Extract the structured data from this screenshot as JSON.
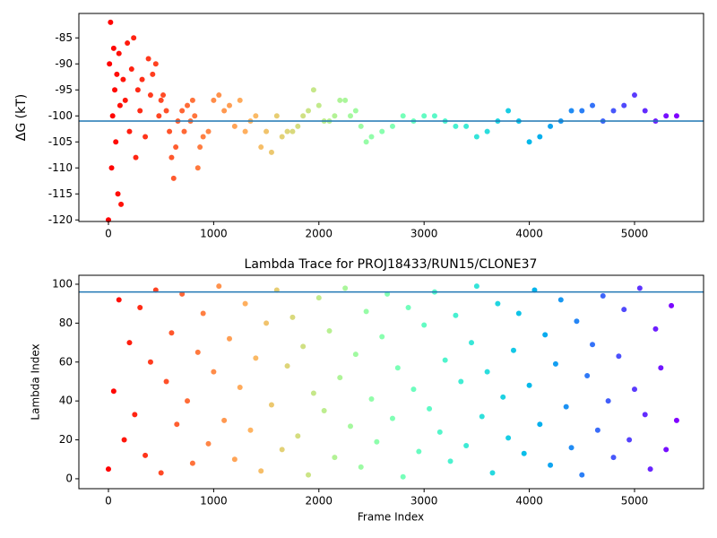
{
  "chart_data": [
    {
      "type": "scatter",
      "ylabel": "ΔG (kT)",
      "colormap": "rainbow_r",
      "hline": -101,
      "hline_color": "#1f77b4",
      "xlim": [
        -281,
        5656
      ],
      "xticks": [
        0,
        1000,
        2000,
        3000,
        4000,
        5000
      ],
      "ylim": [
        -120.3,
        -80.3
      ],
      "yticks": [
        -120,
        -115,
        -110,
        -105,
        -100,
        -95,
        -90,
        -85
      ],
      "x": [
        0,
        10,
        20,
        30,
        40,
        50,
        60,
        70,
        80,
        90,
        100,
        110,
        120,
        140,
        160,
        180,
        200,
        220,
        240,
        260,
        280,
        300,
        320,
        350,
        380,
        400,
        420,
        450,
        480,
        500,
        520,
        550,
        580,
        600,
        620,
        640,
        660,
        700,
        720,
        750,
        780,
        800,
        820,
        850,
        870,
        900,
        950,
        1000,
        1050,
        1100,
        1150,
        1200,
        1250,
        1300,
        1350,
        1400,
        1450,
        1500,
        1550,
        1600,
        1650,
        1700,
        1750,
        1800,
        1850,
        1900,
        1950,
        2000,
        2050,
        2100,
        2150,
        2200,
        2250,
        2300,
        2350,
        2400,
        2450,
        2500,
        2600,
        2700,
        2800,
        2900,
        3000,
        3100,
        3200,
        3300,
        3400,
        3500,
        3600,
        3700,
        3800,
        3900,
        4000,
        4100,
        4200,
        4300,
        4400,
        4500,
        4600,
        4700,
        4800,
        4900,
        5000,
        5100,
        5200,
        5300,
        5400
      ],
      "values": [
        -120,
        -90,
        -82,
        -110,
        -100,
        -87,
        -95,
        -105,
        -92,
        -115,
        -88,
        -98,
        -117,
        -93,
        -97,
        -86,
        -103,
        -91,
        -85,
        -108,
        -95,
        -99,
        -93,
        -104,
        -89,
        -96,
        -92,
        -90,
        -100,
        -97,
        -96,
        -99,
        -103,
        -108,
        -112,
        -106,
        -101,
        -99,
        -103,
        -98,
        -101,
        -97,
        -100,
        -110,
        -106,
        -104,
        -103,
        -97,
        -96,
        -99,
        -98,
        -102,
        -97,
        -103,
        -101,
        -100,
        -106,
        -103,
        -107,
        -100,
        -104,
        -103,
        -103,
        -102,
        -100,
        -99,
        -95,
        -98,
        -101,
        -101,
        -100,
        -97,
        -97,
        -100,
        -99,
        -102,
        -105,
        -104,
        -103,
        -102,
        -100,
        -101,
        -100,
        -100,
        -101,
        -102,
        -102,
        -104,
        -103,
        -101,
        -99,
        -101,
        -105,
        -104,
        -102,
        -101,
        -99,
        -99,
        -98,
        -101,
        -99,
        -98,
        -96,
        -99,
        -101,
        -100,
        -100
      ]
    },
    {
      "type": "scatter",
      "title": "Lambda Trace for PROJ18433/RUN15/CLONE37",
      "xlabel": "Frame Index",
      "ylabel": "Lambda Index",
      "colormap": "rainbow_r",
      "hline": 96,
      "hline_color": "#1f77b4",
      "xlim": [
        -281,
        5656
      ],
      "xticks": [
        0,
        1000,
        2000,
        3000,
        4000,
        5000
      ],
      "ylim": [
        -5.1,
        104.6
      ],
      "yticks": [
        0,
        20,
        40,
        60,
        80,
        100
      ],
      "x": [
        0,
        50,
        100,
        150,
        200,
        250,
        300,
        350,
        400,
        450,
        500,
        550,
        600,
        650,
        700,
        750,
        800,
        850,
        900,
        950,
        1000,
        1050,
        1100,
        1150,
        1200,
        1250,
        1300,
        1350,
        1400,
        1450,
        1500,
        1550,
        1600,
        1650,
        1700,
        1750,
        1800,
        1850,
        1900,
        1950,
        2000,
        2050,
        2100,
        2150,
        2200,
        2250,
        2300,
        2350,
        2400,
        2450,
        2500,
        2550,
        2600,
        2650,
        2700,
        2750,
        2800,
        2850,
        2900,
        2950,
        3000,
        3050,
        3100,
        3150,
        3200,
        3250,
        3300,
        3350,
        3400,
        3450,
        3500,
        3550,
        3600,
        3650,
        3700,
        3750,
        3800,
        3850,
        3900,
        3950,
        4000,
        4050,
        4100,
        4150,
        4200,
        4250,
        4300,
        4350,
        4400,
        4450,
        4500,
        4550,
        4600,
        4650,
        4700,
        4750,
        4800,
        4850,
        4900,
        4950,
        5000,
        5050,
        5100,
        5150,
        5200,
        5250,
        5300,
        5350,
        5400
      ],
      "values": [
        5,
        45,
        92,
        20,
        70,
        33,
        88,
        12,
        60,
        97,
        3,
        50,
        75,
        28,
        95,
        40,
        8,
        65,
        85,
        18,
        55,
        99,
        30,
        72,
        10,
        47,
        90,
        25,
        62,
        4,
        80,
        38,
        97,
        15,
        58,
        83,
        22,
        68,
        2,
        44,
        93,
        35,
        76,
        11,
        52,
        98,
        27,
        64,
        6,
        86,
        41,
        19,
        73,
        95,
        31,
        57,
        1,
        88,
        46,
        14,
        79,
        36,
        96,
        24,
        61,
        9,
        84,
        50,
        17,
        70,
        99,
        32,
        55,
        3,
        90,
        42,
        21,
        66,
        85,
        13,
        48,
        97,
        28,
        74,
        7,
        59,
        92,
        37,
        16,
        81,
        2,
        53,
        69,
        25,
        94,
        40,
        11,
        63,
        87,
        20,
        46,
        98,
        33,
        5,
        77,
        57,
        15,
        89,
        30
      ]
    }
  ]
}
